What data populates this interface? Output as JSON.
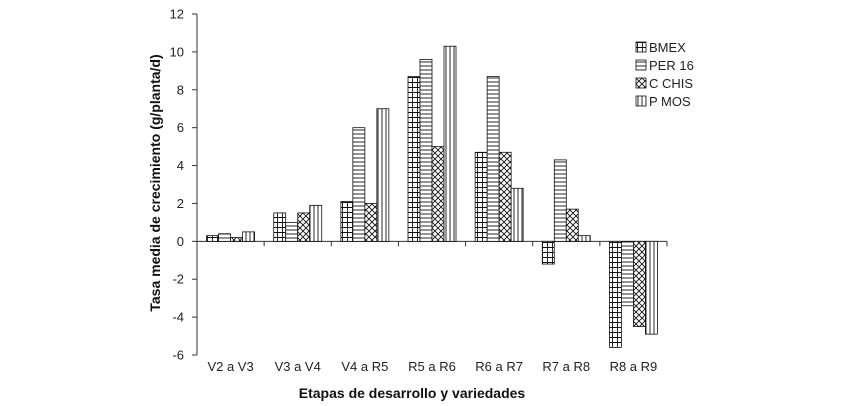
{
  "chart_data": {
    "type": "bar",
    "title": "",
    "xlabel": "Etapas de desarrollo y variedades",
    "ylabel": "Tasa media de crecimiento (g/planta/d)",
    "ylim": [
      -6,
      12
    ],
    "yticks": [
      -6,
      -4,
      -2,
      0,
      2,
      4,
      6,
      8,
      10,
      12
    ],
    "grid": false,
    "legend_position": "top-right",
    "categories": [
      "V2 a V3",
      "V3 a V4",
      "V4 a R5",
      "R5 a R6",
      "R6 a R7",
      "R7 a R8",
      "R8 a R9"
    ],
    "series": [
      {
        "name": "BMEX",
        "pattern": "grid-small",
        "values": [
          0.3,
          1.5,
          2.1,
          8.7,
          4.7,
          -1.2,
          -5.6
        ]
      },
      {
        "name": "PER 16",
        "pattern": "horizontal",
        "values": [
          0.4,
          1.0,
          6.0,
          9.6,
          8.7,
          4.3,
          -3.4
        ]
      },
      {
        "name": "C CHIS",
        "pattern": "crosshatch",
        "values": [
          0.2,
          1.5,
          2.0,
          5.0,
          4.7,
          1.7,
          -4.5
        ]
      },
      {
        "name": "P MOS",
        "pattern": "vertical",
        "values": [
          0.5,
          1.9,
          7.0,
          10.3,
          2.8,
          0.3,
          -4.9
        ]
      }
    ]
  }
}
